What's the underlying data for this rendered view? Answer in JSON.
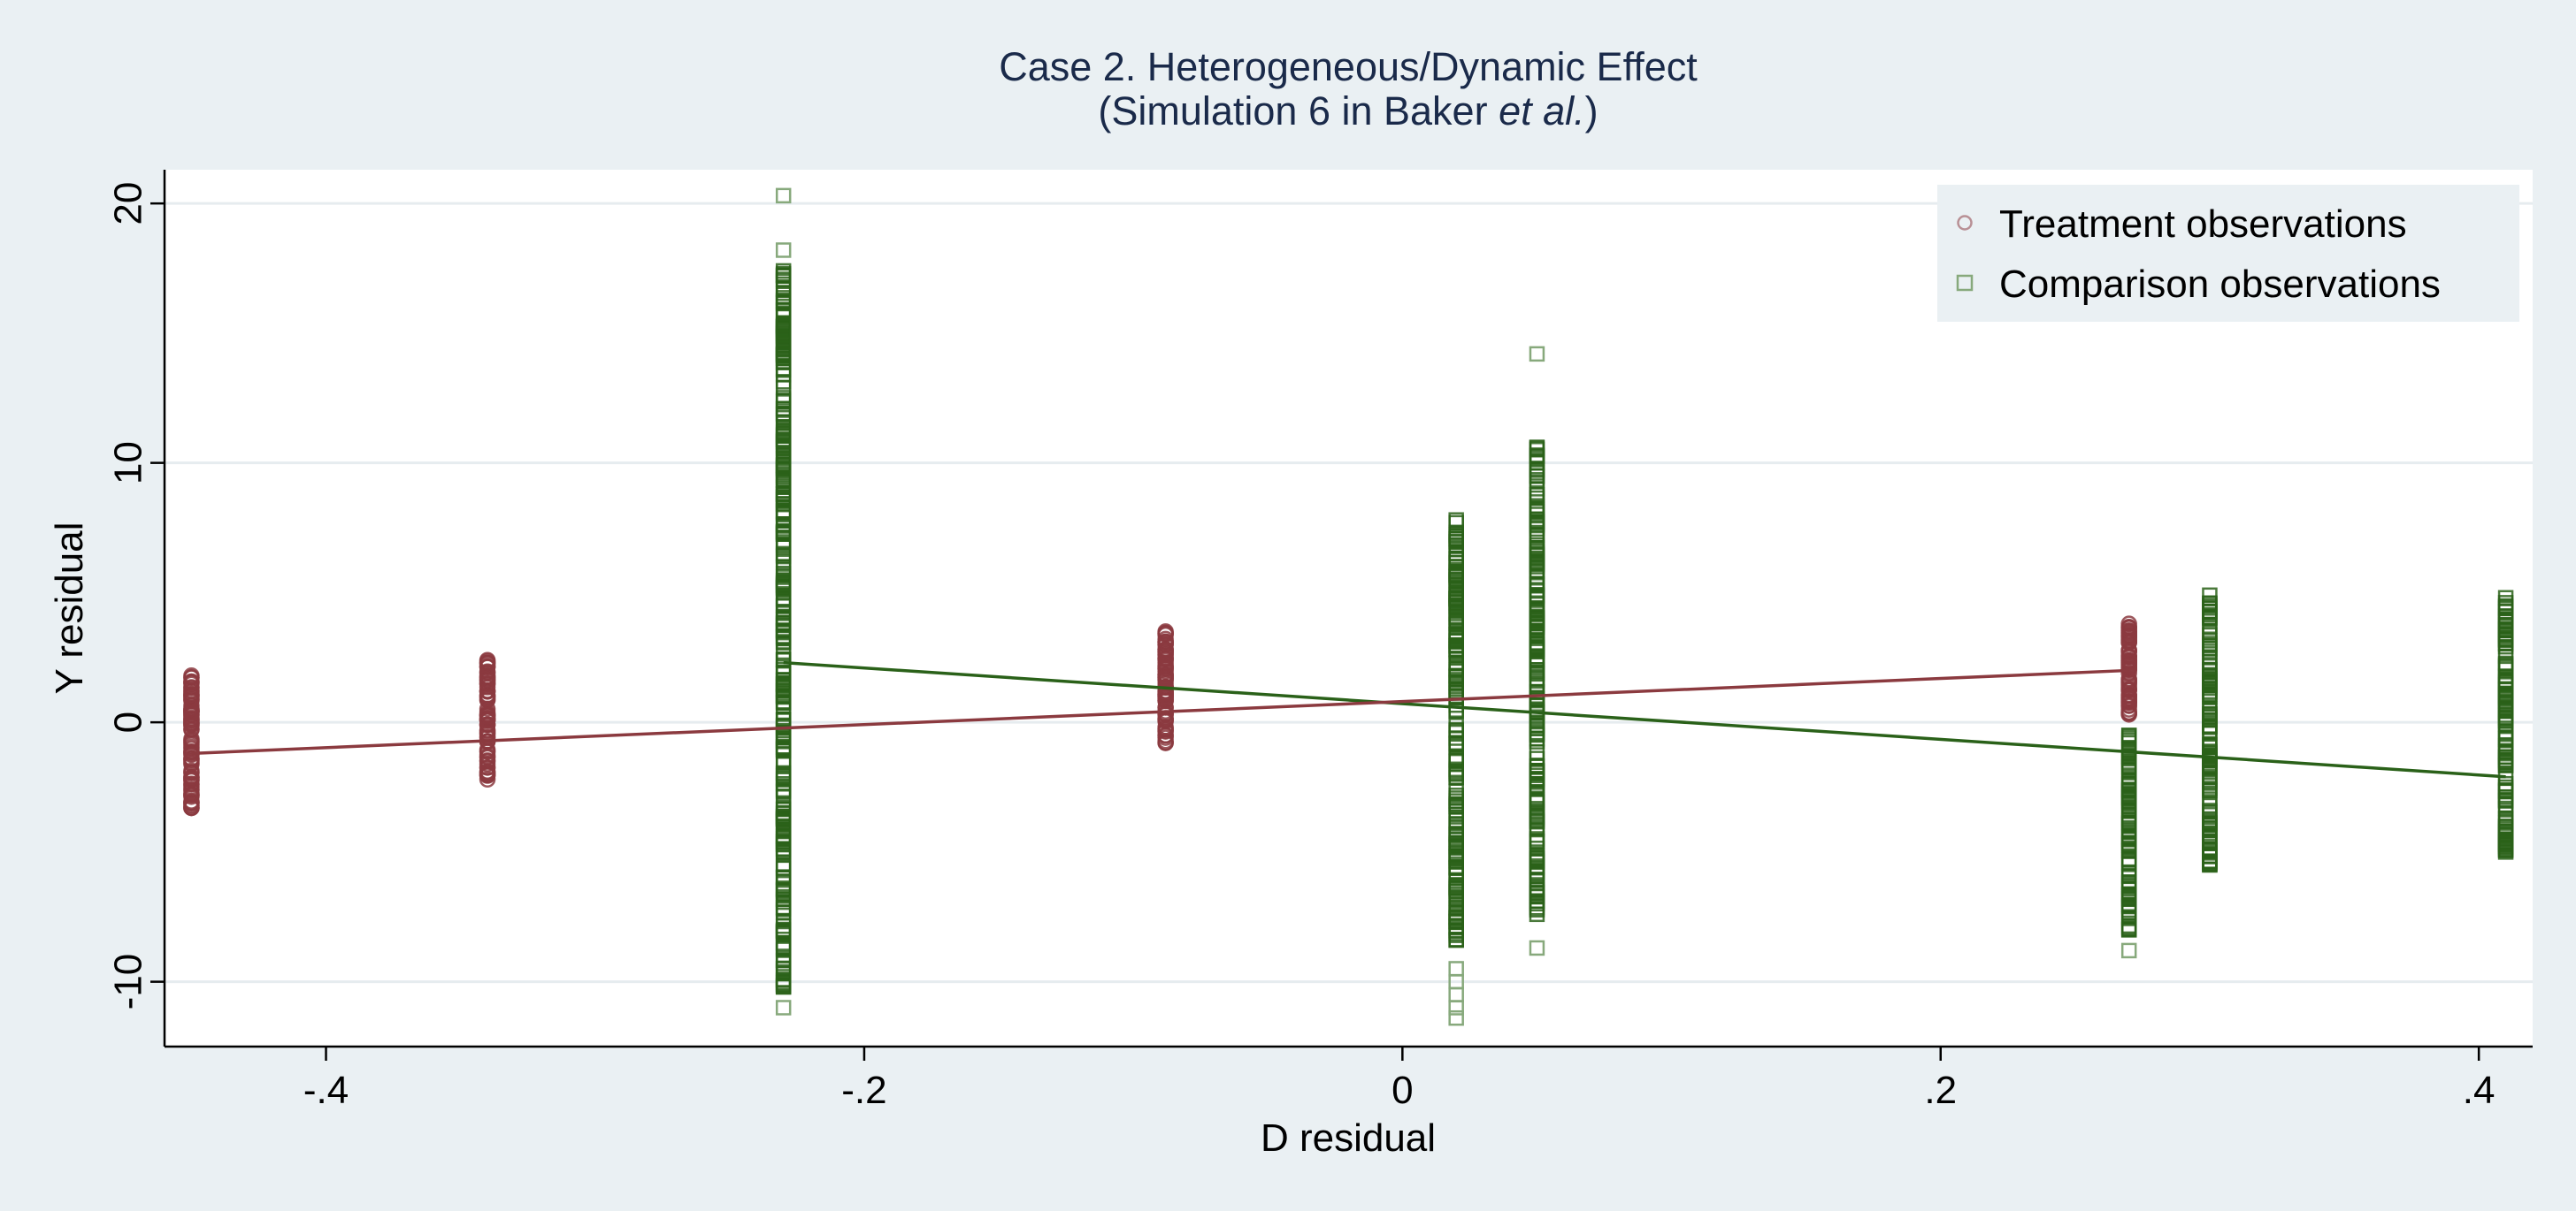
{
  "chart_data": {
    "type": "scatter",
    "title": "Case 2. Heterogeneous/Dynamic Effect",
    "subtitle": {
      "prefix": "(Simulation 6 in Baker ",
      "italic": "et al.",
      "suffix": ")"
    },
    "xlabel": "D residual",
    "ylabel": "Y residual",
    "xlim": [
      -0.46,
      0.42
    ],
    "ylim": [
      -12.5,
      21.3
    ],
    "x_ticks": [
      {
        "value": -0.4,
        "label": "-.4"
      },
      {
        "value": -0.2,
        "label": "-.2"
      },
      {
        "value": 0,
        "label": "0"
      },
      {
        "value": 0.2,
        "label": ".2"
      },
      {
        "value": 0.4,
        "label": ".4"
      }
    ],
    "y_ticks": [
      {
        "value": -10,
        "label": "-10"
      },
      {
        "value": 0,
        "label": "0"
      },
      {
        "value": 10,
        "label": "10"
      },
      {
        "value": 20,
        "label": "20"
      }
    ],
    "grid": "horizontal",
    "legend": {
      "position": "top-right",
      "entries": [
        "Treatment observations",
        "Comparison observations"
      ]
    },
    "colors": {
      "background": "#eaf0f3",
      "plot_background": "#ffffff",
      "grid": "#e6ecef",
      "treatment": "#8b3a3f",
      "comparison": "#2a6119",
      "title": "#1a2a4a"
    },
    "series": [
      {
        "name": "Treatment observations",
        "marker": "circle",
        "clusters": [
          {
            "x": -0.45,
            "min": -3.3,
            "max": 1.8,
            "n": 90
          },
          {
            "x": -0.34,
            "min": -2.2,
            "max": 2.4,
            "n": 80
          },
          {
            "x": -0.088,
            "min": -0.8,
            "max": 3.5,
            "n": 80
          },
          {
            "x": 0.27,
            "min": 0.3,
            "max": 3.8,
            "n": 70
          }
        ],
        "fit_line": {
          "x": [
            -0.45,
            0.27
          ],
          "y": [
            -1.2,
            2.0
          ]
        }
      },
      {
        "name": "Comparison observations",
        "marker": "square",
        "clusters": [
          {
            "x": -0.23,
            "min": -10.2,
            "max": 17.4,
            "n": 300
          },
          {
            "x": 0.02,
            "min": -8.4,
            "max": 7.8,
            "n": 180
          },
          {
            "x": 0.05,
            "min": -7.4,
            "max": 10.6,
            "n": 180
          },
          {
            "x": 0.27,
            "min": -8.0,
            "max": -0.5,
            "n": 90
          },
          {
            "x": 0.3,
            "min": -5.5,
            "max": 4.9,
            "n": 110
          },
          {
            "x": 0.41,
            "min": -5.0,
            "max": 4.8,
            "n": 110
          }
        ],
        "outliers": [
          {
            "x": -0.23,
            "y": 20.3
          },
          {
            "x": -0.23,
            "y": 18.2
          },
          {
            "x": -0.23,
            "y": -11.0
          },
          {
            "x": 0.02,
            "y": -9.5
          },
          {
            "x": 0.02,
            "y": -10.0
          },
          {
            "x": 0.02,
            "y": -10.5
          },
          {
            "x": 0.02,
            "y": -11.0
          },
          {
            "x": 0.02,
            "y": -11.4
          },
          {
            "x": 0.05,
            "y": 14.2
          },
          {
            "x": 0.05,
            "y": -8.7
          },
          {
            "x": 0.27,
            "y": -8.8
          }
        ],
        "fit_line": {
          "x": [
            -0.23,
            0.41
          ],
          "y": [
            2.3,
            -2.1
          ]
        }
      }
    ]
  }
}
